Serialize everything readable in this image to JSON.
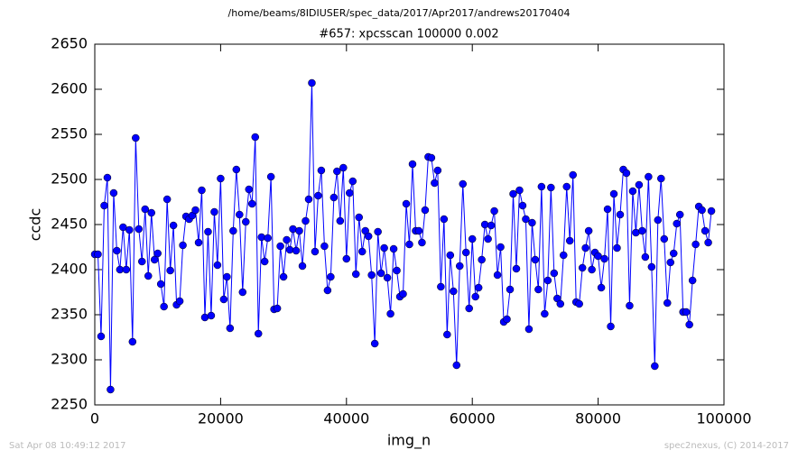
{
  "chart_data": {
    "type": "line",
    "suptitle": "/home/beams/8IDIUSER/spec_data/2017/Apr2017/andrews20170404",
    "title": "#657: xpcsscan 100000 0.002",
    "x_label": "img_n",
    "y_label": "ccdc",
    "footer_left": "Sat Apr 08 10:49:12 2017",
    "footer_right": "spec2nexus, (C) 2014-2017",
    "xlim": [
      0,
      100000
    ],
    "xticks": [
      0,
      20000,
      40000,
      60000,
      80000,
      100000
    ],
    "ylim": [
      2250,
      2650
    ],
    "yticks": [
      2250,
      2300,
      2350,
      2400,
      2450,
      2500,
      2550,
      2600,
      2650
    ],
    "x": [
      0,
      500,
      1000,
      1500,
      2000,
      2500,
      3000,
      3500,
      4000,
      4500,
      5000,
      5500,
      6000,
      6500,
      7000,
      7500,
      8000,
      8500,
      9000,
      9500,
      10000,
      10500,
      11000,
      11500,
      12000,
      12500,
      13000,
      13500,
      14000,
      14500,
      15000,
      15500,
      16000,
      16500,
      17000,
      17500,
      18000,
      18500,
      19000,
      19500,
      20000,
      20500,
      21000,
      21500,
      22000,
      22500,
      23000,
      23500,
      24000,
      24500,
      25000,
      25500,
      26000,
      26500,
      27000,
      27500,
      28000,
      28500,
      29000,
      29500,
      30000,
      30500,
      31000,
      31500,
      32000,
      32500,
      33000,
      33500,
      34000,
      34500,
      35000,
      35500,
      36000,
      36500,
      37000,
      37500,
      38000,
      38500,
      39000,
      39500,
      40000,
      40500,
      41000,
      41500,
      42000,
      42500,
      43000,
      43500,
      44000,
      44500,
      45000,
      45500,
      46000,
      46500,
      47000,
      47500,
      48000,
      48500,
      49000,
      49500,
      50000,
      50500,
      51000,
      51500,
      52000,
      52500,
      53000,
      53500,
      54000,
      54500,
      55000,
      55500,
      56000,
      56500,
      57000,
      57500,
      58000,
      58500,
      59000,
      59500,
      60000,
      60500,
      61000,
      61500,
      62000,
      62500,
      63000,
      63500,
      64000,
      64500,
      65000,
      65500,
      66000,
      66500,
      67000,
      67500,
      68000,
      68500,
      69000,
      69500,
      70000,
      70500,
      71000,
      71500,
      72000,
      72500,
      73000,
      73500,
      74000,
      74500,
      75000,
      75500,
      76000,
      76500,
      77000,
      77500,
      78000,
      78500,
      79000,
      79500,
      80000,
      80500,
      81000,
      81500,
      82000,
      82500,
      83000,
      83500,
      84000,
      84500,
      85000,
      85500,
      86000,
      86500,
      87000,
      87500,
      88000,
      88500,
      89000,
      89500,
      90000,
      90500,
      91000,
      91500,
      92000,
      92500,
      93000,
      93500,
      94000,
      94500,
      95000,
      95500,
      96000,
      96500,
      97000,
      97500,
      98000
    ],
    "series": [
      {
        "name": "ccdc",
        "color": "#0000ff",
        "values": [
          2417,
          2417,
          2326,
          2471,
          2502,
          2267,
          2485,
          2421,
          2400,
          2447,
          2400,
          2444,
          2320,
          2546,
          2445,
          2409,
          2467,
          2393,
          2463,
          2411,
          2418,
          2384,
          2359,
          2478,
          2399,
          2449,
          2361,
          2365,
          2427,
          2459,
          2456,
          2460,
          2466,
          2430,
          2488,
          2347,
          2442,
          2349,
          2464,
          2405,
          2501,
          2367,
          2392,
          2335,
          2443,
          2511,
          2461,
          2375,
          2453,
          2489,
          2473,
          2547,
          2329,
          2436,
          2409,
          2435,
          2503,
          2356,
          2357,
          2426,
          2392,
          2433,
          2422,
          2445,
          2421,
          2443,
          2404,
          2454,
          2478,
          2607,
          2420,
          2482,
          2510,
          2426,
          2377,
          2392,
          2480,
          2509,
          2454,
          2513,
          2412,
          2485,
          2498,
          2395,
          2458,
          2420,
          2443,
          2437,
          2394,
          2318,
          2442,
          2396,
          2424,
          2391,
          2351,
          2423,
          2399,
          2370,
          2373,
          2473,
          2428,
          2517,
          2443,
          2443,
          2430,
          2466,
          2525,
          2524,
          2496,
          2510,
          2381,
          2456,
          2328,
          2416,
          2376,
          2294,
          2404,
          2495,
          2419,
          2357,
          2434,
          2370,
          2380,
          2411,
          2450,
          2434,
          2449,
          2465,
          2394,
          2425,
          2342,
          2345,
          2378,
          2484,
          2401,
          2488,
          2471,
          2456,
          2334,
          2452,
          2411,
          2378,
          2492,
          2351,
          2388,
          2491,
          2396,
          2368,
          2362,
          2416,
          2492,
          2432,
          2505,
          2364,
          2362,
          2402,
          2424,
          2443,
          2400,
          2419,
          2415,
          2380,
          2412,
          2467,
          2337,
          2484,
          2424,
          2461,
          2511,
          2507,
          2360,
          2487,
          2441,
          2494,
          2443,
          2414,
          2503,
          2403,
          2293,
          2455,
          2501,
          2434,
          2363,
          2408,
          2418,
          2451,
          2461,
          2353,
          2353,
          2339,
          2388,
          2428,
          2470,
          2466,
          2443,
          2430,
          2465
        ]
      }
    ]
  }
}
